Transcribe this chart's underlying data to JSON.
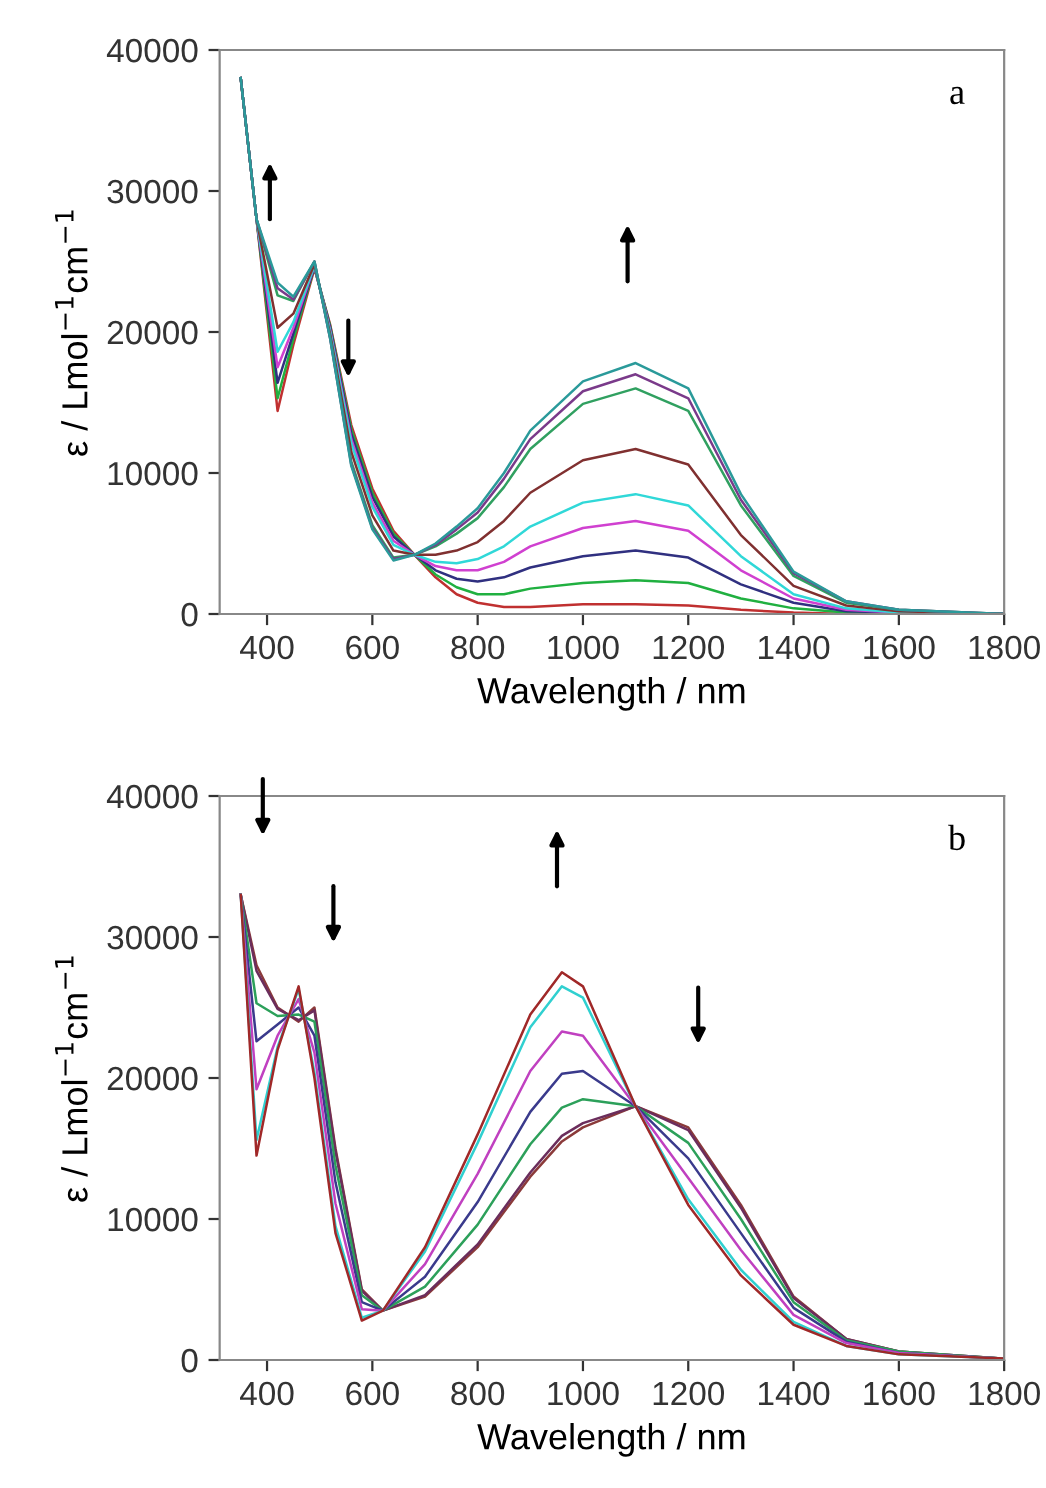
{
  "chart_data": [
    {
      "type": "line",
      "xlabel": "Wavelength / nm",
      "ylabel": "ε / Lmol$^{−1}$cm$^{−1}$",
      "annotations": [
        "a"
      ],
      "xlim": [
        310,
        1800
      ],
      "ylim": [
        0,
        40000
      ],
      "xticks": [
        400,
        600,
        800,
        1000,
        1200,
        1400,
        1600,
        1800
      ],
      "yticks": [
        0,
        10000,
        20000,
        30000,
        40000
      ],
      "grid": false,
      "legend": false,
      "marker": "none",
      "line_style": "solid",
      "x": [
        350,
        380,
        420,
        450,
        490,
        520,
        560,
        600,
        640,
        680,
        720,
        760,
        800,
        850,
        900,
        1000,
        1100,
        1200,
        1300,
        1400,
        1500,
        1600,
        1800
      ],
      "series": [
        {
          "color": "#c03030",
          "values": [
            38000,
            28000,
            14400,
            19100,
            24500,
            20500,
            13400,
            8900,
            5900,
            4200,
            2600,
            1400,
            800,
            500,
            500,
            700,
            700,
            600,
            300,
            100,
            0,
            0,
            0
          ]
        },
        {
          "color": "#20b040",
          "values": [
            38000,
            28000,
            15300,
            19500,
            24600,
            20400,
            13100,
            8600,
            5700,
            4200,
            2800,
            1900,
            1400,
            1400,
            1800,
            2200,
            2400,
            2200,
            1100,
            400,
            100,
            0,
            0
          ]
        },
        {
          "color": "#303080",
          "values": [
            38000,
            28000,
            16400,
            19900,
            24600,
            20300,
            12800,
            8300,
            5500,
            4200,
            3100,
            2500,
            2300,
            2600,
            3300,
            4100,
            4500,
            4000,
            2100,
            800,
            200,
            100,
            0
          ]
        },
        {
          "color": "#d040d0",
          "values": [
            38000,
            28000,
            17500,
            20300,
            24700,
            20100,
            12400,
            7900,
            5200,
            4200,
            3400,
            3100,
            3100,
            3700,
            4800,
            6100,
            6600,
            5900,
            3100,
            1100,
            300,
            100,
            0
          ]
        },
        {
          "color": "#30d8d8",
          "values": [
            38000,
            28000,
            18600,
            20700,
            24700,
            20000,
            12100,
            7600,
            4900,
            4200,
            3700,
            3600,
            3900,
            4800,
            6200,
            7900,
            8500,
            7700,
            4100,
            1400,
            400,
            100,
            0
          ]
        },
        {
          "color": "#803030",
          "values": [
            38000,
            28000,
            20300,
            21300,
            24800,
            19800,
            11500,
            7000,
            4500,
            4200,
            4200,
            4500,
            5100,
            6600,
            8600,
            10900,
            11700,
            10600,
            5600,
            2000,
            600,
            200,
            0
          ]
        },
        {
          "color": "#30a060",
          "values": [
            38000,
            28000,
            22600,
            22200,
            25000,
            19600,
            10800,
            6300,
            4000,
            4200,
            4800,
            5700,
            6800,
            9000,
            11700,
            14900,
            16000,
            14400,
            7700,
            2700,
            800,
            300,
            0
          ]
        },
        {
          "color": "#7a3a8a",
          "values": [
            38000,
            28000,
            23100,
            22300,
            25000,
            19500,
            10600,
            6100,
            3900,
            4200,
            4900,
            6000,
            7200,
            9600,
            12400,
            15800,
            17000,
            15300,
            8100,
            2900,
            900,
            300,
            0
          ]
        },
        {
          "color": "#2a9a9a",
          "values": [
            38000,
            28000,
            23500,
            22500,
            25000,
            19500,
            10500,
            6000,
            3800,
            4200,
            5000,
            6200,
            7500,
            10000,
            13000,
            16500,
            17800,
            16000,
            8500,
            3000,
            900,
            300,
            0
          ]
        }
      ]
    },
    {
      "type": "line",
      "xlabel": "Wavelength / nm",
      "ylabel": "ε / Lmol$^{−1}$cm$^{−1}$",
      "annotations": [
        "b"
      ],
      "xlim": [
        310,
        1800
      ],
      "ylim": [
        0,
        40000
      ],
      "xticks": [
        400,
        600,
        800,
        1000,
        1200,
        1400,
        1600,
        1800
      ],
      "yticks": [
        0,
        10000,
        20000,
        30000,
        40000
      ],
      "grid": false,
      "legend": false,
      "marker": "none",
      "line_style": "solid",
      "x": [
        350,
        380,
        420,
        460,
        490,
        530,
        580,
        620,
        700,
        800,
        900,
        960,
        1000,
        1100,
        1200,
        1300,
        1400,
        1500,
        1600,
        1800
      ],
      "series": [
        {
          "color": "#8b3a3a",
          "values": [
            33000,
            28000,
            25000,
            24000,
            25000,
            15000,
            5000,
            3500,
            4500,
            8000,
            13000,
            15500,
            16500,
            18000,
            16500,
            11000,
            4500,
            1500,
            600,
            100
          ]
        },
        {
          "color": "#6b2d5c",
          "values": [
            33000,
            27600,
            24900,
            24100,
            24800,
            14800,
            4900,
            3500,
            4600,
            8200,
            13300,
            15900,
            16800,
            18000,
            16300,
            10800,
            4400,
            1500,
            600,
            100
          ]
        },
        {
          "color": "#2ca05a",
          "values": [
            33000,
            25300,
            24400,
            24500,
            24000,
            13800,
            4600,
            3500,
            5200,
            9600,
            15300,
            17900,
            18500,
            18000,
            15400,
            10000,
            4100,
            1400,
            600,
            100
          ]
        },
        {
          "color": "#3a3a8c",
          "values": [
            33000,
            22600,
            23800,
            25000,
            23000,
            12600,
            4100,
            3500,
            5900,
            11200,
            17600,
            20300,
            20500,
            18000,
            14300,
            9000,
            3700,
            1300,
            500,
            100
          ]
        },
        {
          "color": "#c040c0",
          "values": [
            33000,
            19200,
            23000,
            25600,
            21800,
            11100,
            3600,
            3500,
            6800,
            13200,
            20500,
            23300,
            23000,
            18000,
            12900,
            7800,
            3200,
            1200,
            500,
            100
          ]
        },
        {
          "color": "#30d0d0",
          "values": [
            33000,
            15600,
            22200,
            26300,
            20400,
            9500,
            3000,
            3500,
            7700,
            15400,
            23600,
            26500,
            25700,
            18000,
            11400,
            6400,
            2700,
            1000,
            400,
            100
          ]
        },
        {
          "color": "#a02828",
          "values": [
            33000,
            14500,
            22000,
            26500,
            20000,
            9000,
            2800,
            3500,
            8000,
            16000,
            24500,
            27500,
            26500,
            18000,
            11000,
            6000,
            2500,
            1000,
            400,
            100
          ]
        }
      ]
    }
  ]
}
